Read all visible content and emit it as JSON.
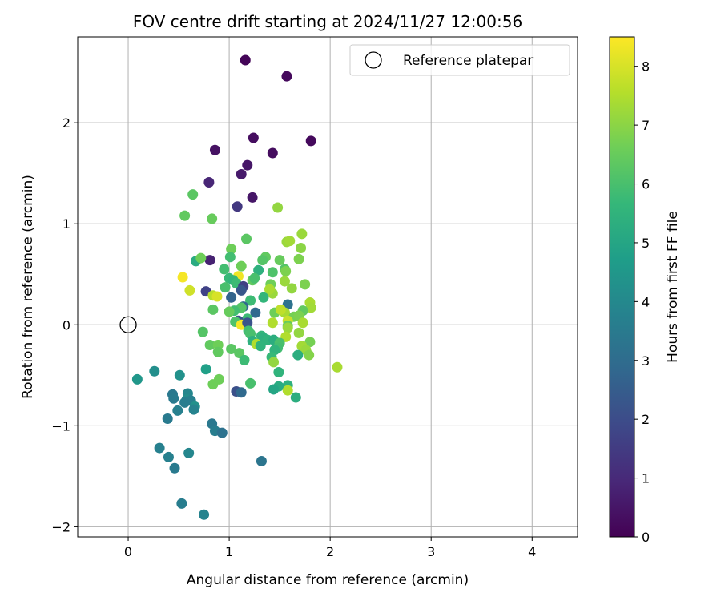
{
  "chart_data": {
    "type": "scatter",
    "title": "FOV centre drift starting at 2024/11/27 12:00:56",
    "xlabel": "Angular distance from reference (arcmin)",
    "ylabel": "Rotation from reference (arcmin)",
    "xlim": [
      -0.5,
      4.45
    ],
    "ylim": [
      -2.1,
      2.85
    ],
    "xticks": [
      0,
      1,
      2,
      3,
      4
    ],
    "yticks": [
      -2,
      -1,
      0,
      1,
      2
    ],
    "xtick_labels": [
      "0",
      "1",
      "2",
      "3",
      "4"
    ],
    "ytick_labels": [
      "−2",
      "−1",
      "0",
      "1",
      "2"
    ],
    "grid": true,
    "legend": {
      "position": "top-right",
      "label": "Reference platepar"
    },
    "reference_point": {
      "x": 0,
      "y": 0
    },
    "colorbar": {
      "label": "Hours from first FF file",
      "colormap": "viridis",
      "range": [
        0,
        8.5
      ],
      "ticks": [
        0,
        1,
        2,
        3,
        4,
        5,
        6,
        7,
        8
      ],
      "tick_labels": [
        "0",
        "1",
        "2",
        "3",
        "4",
        "5",
        "6",
        "7",
        "8"
      ]
    },
    "colormap_stops": [
      "#440154",
      "#482878",
      "#3e4989",
      "#31688e",
      "#26828e",
      "#1f9e89",
      "#35b779",
      "#6ece58",
      "#b5de2b",
      "#fde725"
    ],
    "points": [
      {
        "x": 1.16,
        "y": 2.62,
        "c": 0.1
      },
      {
        "x": 1.57,
        "y": 2.46,
        "c": 0.2
      },
      {
        "x": 1.24,
        "y": 1.85,
        "c": 0.3
      },
      {
        "x": 1.81,
        "y": 1.82,
        "c": 0.2
      },
      {
        "x": 0.86,
        "y": 1.73,
        "c": 0.4
      },
      {
        "x": 1.43,
        "y": 1.7,
        "c": 0.3
      },
      {
        "x": 1.18,
        "y": 1.58,
        "c": 0.5
      },
      {
        "x": 1.12,
        "y": 1.49,
        "c": 0.6
      },
      {
        "x": 0.8,
        "y": 1.41,
        "c": 0.9
      },
      {
        "x": 1.23,
        "y": 1.26,
        "c": 0.5
      },
      {
        "x": 1.08,
        "y": 1.17,
        "c": 1.4
      },
      {
        "x": 0.81,
        "y": 0.64,
        "c": 0.8
      },
      {
        "x": 0.64,
        "y": 1.29,
        "c": 6.3
      },
      {
        "x": 0.56,
        "y": 1.08,
        "c": 6.4
      },
      {
        "x": 0.83,
        "y": 1.05,
        "c": 6.5
      },
      {
        "x": 1.48,
        "y": 1.16,
        "c": 7.1
      },
      {
        "x": 1.72,
        "y": 0.9,
        "c": 7.2
      },
      {
        "x": 1.17,
        "y": 0.85,
        "c": 6.3
      },
      {
        "x": 1.57,
        "y": 0.82,
        "c": 7.2
      },
      {
        "x": 1.6,
        "y": 0.83,
        "c": 7.3
      },
      {
        "x": 1.02,
        "y": 0.75,
        "c": 6.6
      },
      {
        "x": 1.71,
        "y": 0.76,
        "c": 7.0
      },
      {
        "x": 1.36,
        "y": 0.67,
        "c": 6.4
      },
      {
        "x": 1.69,
        "y": 0.65,
        "c": 6.8
      },
      {
        "x": 1.01,
        "y": 0.67,
        "c": 5.9
      },
      {
        "x": 0.67,
        "y": 0.63,
        "c": 5.2
      },
      {
        "x": 0.72,
        "y": 0.66,
        "c": 6.6
      },
      {
        "x": 1.33,
        "y": 0.64,
        "c": 6.2
      },
      {
        "x": 1.5,
        "y": 0.64,
        "c": 6.5
      },
      {
        "x": 1.12,
        "y": 0.58,
        "c": 6.6
      },
      {
        "x": 0.95,
        "y": 0.55,
        "c": 5.9
      },
      {
        "x": 1.29,
        "y": 0.54,
        "c": 5.4
      },
      {
        "x": 1.55,
        "y": 0.55,
        "c": 6.2
      },
      {
        "x": 1.56,
        "y": 0.53,
        "c": 6.8
      },
      {
        "x": 1.43,
        "y": 0.52,
        "c": 6.1
      },
      {
        "x": 1.09,
        "y": 0.48,
        "c": 8.3
      },
      {
        "x": 0.54,
        "y": 0.47,
        "c": 8.4
      },
      {
        "x": 1.0,
        "y": 0.46,
        "c": 5.7
      },
      {
        "x": 1.04,
        "y": 0.44,
        "c": 5.6
      },
      {
        "x": 1.23,
        "y": 0.44,
        "c": 6.4
      },
      {
        "x": 1.25,
        "y": 0.46,
        "c": 6.0
      },
      {
        "x": 1.55,
        "y": 0.43,
        "c": 7.2
      },
      {
        "x": 1.07,
        "y": 0.41,
        "c": 5.8
      },
      {
        "x": 1.41,
        "y": 0.4,
        "c": 6.6
      },
      {
        "x": 1.75,
        "y": 0.4,
        "c": 6.8
      },
      {
        "x": 1.14,
        "y": 0.38,
        "c": 1.6
      },
      {
        "x": 0.96,
        "y": 0.37,
        "c": 6.0
      },
      {
        "x": 1.62,
        "y": 0.36,
        "c": 7.1
      },
      {
        "x": 0.61,
        "y": 0.34,
        "c": 7.9
      },
      {
        "x": 0.77,
        "y": 0.33,
        "c": 1.7
      },
      {
        "x": 1.12,
        "y": 0.34,
        "c": 2.3
      },
      {
        "x": 1.43,
        "y": 0.31,
        "c": 7.2
      },
      {
        "x": 1.4,
        "y": 0.35,
        "c": 7.4
      },
      {
        "x": 0.84,
        "y": 0.29,
        "c": 7.6
      },
      {
        "x": 0.88,
        "y": 0.28,
        "c": 8.0
      },
      {
        "x": 1.02,
        "y": 0.27,
        "c": 2.7
      },
      {
        "x": 1.34,
        "y": 0.27,
        "c": 5.6
      },
      {
        "x": 1.8,
        "y": 0.22,
        "c": 7.4
      },
      {
        "x": 1.58,
        "y": 0.2,
        "c": 3.2
      },
      {
        "x": 1.21,
        "y": 0.24,
        "c": 5.8
      },
      {
        "x": 1.14,
        "y": 0.18,
        "c": 2.9
      },
      {
        "x": 1.12,
        "y": 0.17,
        "c": 6.2
      },
      {
        "x": 1.81,
        "y": 0.17,
        "c": 7.3
      },
      {
        "x": 0.84,
        "y": 0.15,
        "c": 6.3
      },
      {
        "x": 1.05,
        "y": 0.14,
        "c": 5.9
      },
      {
        "x": 1.73,
        "y": 0.14,
        "c": 6.4
      },
      {
        "x": 1.0,
        "y": 0.13,
        "c": 6.5
      },
      {
        "x": 1.26,
        "y": 0.12,
        "c": 2.9
      },
      {
        "x": 1.45,
        "y": 0.12,
        "c": 6.6
      },
      {
        "x": 1.55,
        "y": 0.12,
        "c": 7.4
      },
      {
        "x": 1.51,
        "y": 0.15,
        "c": 7.7
      },
      {
        "x": 1.64,
        "y": 0.08,
        "c": 6.7
      },
      {
        "x": 1.69,
        "y": 0.09,
        "c": 6.8
      },
      {
        "x": 1.18,
        "y": 0.06,
        "c": 5.8
      },
      {
        "x": 1.09,
        "y": 0.04,
        "c": 2.2
      },
      {
        "x": 1.06,
        "y": 0.03,
        "c": 6.1
      },
      {
        "x": 1.58,
        "y": 0.04,
        "c": 7.8
      },
      {
        "x": 1.73,
        "y": 0.02,
        "c": 7.4
      },
      {
        "x": 1.43,
        "y": 0.02,
        "c": 7.5
      },
      {
        "x": 1.58,
        "y": -0.01,
        "c": 6.5
      },
      {
        "x": 1.12,
        "y": 0.0,
        "c": 8.4
      },
      {
        "x": 1.18,
        "y": 0.02,
        "c": 2.2
      },
      {
        "x": 1.58,
        "y": -0.03,
        "c": 7.2
      },
      {
        "x": 1.19,
        "y": -0.06,
        "c": 5.9
      },
      {
        "x": 0.74,
        "y": -0.07,
        "c": 6.2
      },
      {
        "x": 1.21,
        "y": -0.09,
        "c": 6.0
      },
      {
        "x": 1.69,
        "y": -0.08,
        "c": 7.1
      },
      {
        "x": 1.32,
        "y": -0.11,
        "c": 5.6
      },
      {
        "x": 1.34,
        "y": -0.13,
        "c": 5.4
      },
      {
        "x": 1.56,
        "y": -0.12,
        "c": 7.5
      },
      {
        "x": 1.38,
        "y": -0.15,
        "c": 5.5
      },
      {
        "x": 1.23,
        "y": -0.16,
        "c": 5.4
      },
      {
        "x": 1.44,
        "y": -0.15,
        "c": 5.3
      },
      {
        "x": 1.8,
        "y": -0.17,
        "c": 6.7
      },
      {
        "x": 1.5,
        "y": -0.18,
        "c": 6.0
      },
      {
        "x": 1.27,
        "y": -0.19,
        "c": 7.5
      },
      {
        "x": 1.31,
        "y": -0.21,
        "c": 5.5
      },
      {
        "x": 1.72,
        "y": -0.21,
        "c": 7.3
      },
      {
        "x": 0.81,
        "y": -0.2,
        "c": 6.4
      },
      {
        "x": 0.89,
        "y": -0.2,
        "c": 6.6
      },
      {
        "x": 1.48,
        "y": -0.23,
        "c": 5.9
      },
      {
        "x": 1.76,
        "y": -0.25,
        "c": 7.2
      },
      {
        "x": 1.02,
        "y": -0.24,
        "c": 6.3
      },
      {
        "x": 1.45,
        "y": -0.25,
        "c": 5.5
      },
      {
        "x": 0.89,
        "y": -0.27,
        "c": 6.4
      },
      {
        "x": 1.1,
        "y": -0.28,
        "c": 6.3
      },
      {
        "x": 1.68,
        "y": -0.3,
        "c": 5.3
      },
      {
        "x": 1.79,
        "y": -0.3,
        "c": 6.9
      },
      {
        "x": 1.42,
        "y": -0.32,
        "c": 5.7
      },
      {
        "x": 1.15,
        "y": -0.35,
        "c": 5.8
      },
      {
        "x": 1.44,
        "y": -0.37,
        "c": 7.1
      },
      {
        "x": 2.07,
        "y": -0.42,
        "c": 7.4
      },
      {
        "x": 0.77,
        "y": -0.44,
        "c": 4.8
      },
      {
        "x": 0.26,
        "y": -0.46,
        "c": 4.2
      },
      {
        "x": 1.49,
        "y": -0.47,
        "c": 5.5
      },
      {
        "x": 0.51,
        "y": -0.5,
        "c": 4.3
      },
      {
        "x": 0.09,
        "y": -0.54,
        "c": 4.5
      },
      {
        "x": 0.9,
        "y": -0.54,
        "c": 6.6
      },
      {
        "x": 1.21,
        "y": -0.58,
        "c": 6.0
      },
      {
        "x": 0.84,
        "y": -0.59,
        "c": 6.6
      },
      {
        "x": 1.58,
        "y": -0.6,
        "c": 5.4
      },
      {
        "x": 1.49,
        "y": -0.61,
        "c": 5.2
      },
      {
        "x": 1.44,
        "y": -0.64,
        "c": 5.0
      },
      {
        "x": 1.58,
        "y": -0.65,
        "c": 7.5
      },
      {
        "x": 1.07,
        "y": -0.66,
        "c": 2.1
      },
      {
        "x": 1.12,
        "y": -0.67,
        "c": 2.9
      },
      {
        "x": 0.59,
        "y": -0.68,
        "c": 3.9
      },
      {
        "x": 0.44,
        "y": -0.69,
        "c": 3.4
      },
      {
        "x": 0.45,
        "y": -0.73,
        "c": 3.5
      },
      {
        "x": 0.58,
        "y": -0.74,
        "c": 4.1
      },
      {
        "x": 1.66,
        "y": -0.72,
        "c": 5.3
      },
      {
        "x": 0.62,
        "y": -0.75,
        "c": 3.7
      },
      {
        "x": 0.56,
        "y": -0.77,
        "c": 3.6
      },
      {
        "x": 0.66,
        "y": -0.81,
        "c": 4.3
      },
      {
        "x": 0.65,
        "y": -0.84,
        "c": 3.8
      },
      {
        "x": 0.49,
        "y": -0.85,
        "c": 3.7
      },
      {
        "x": 0.39,
        "y": -0.93,
        "c": 3.5
      },
      {
        "x": 0.83,
        "y": -0.98,
        "c": 3.4
      },
      {
        "x": 0.86,
        "y": -1.05,
        "c": 3.6
      },
      {
        "x": 0.93,
        "y": -1.07,
        "c": 3.2
      },
      {
        "x": 0.31,
        "y": -1.22,
        "c": 3.7
      },
      {
        "x": 0.6,
        "y": -1.27,
        "c": 3.9
      },
      {
        "x": 0.4,
        "y": -1.31,
        "c": 3.7
      },
      {
        "x": 1.32,
        "y": -1.35,
        "c": 3.3
      },
      {
        "x": 0.46,
        "y": -1.42,
        "c": 3.5
      },
      {
        "x": 0.53,
        "y": -1.77,
        "c": 3.6
      },
      {
        "x": 0.75,
        "y": -1.88,
        "c": 3.8
      }
    ]
  }
}
